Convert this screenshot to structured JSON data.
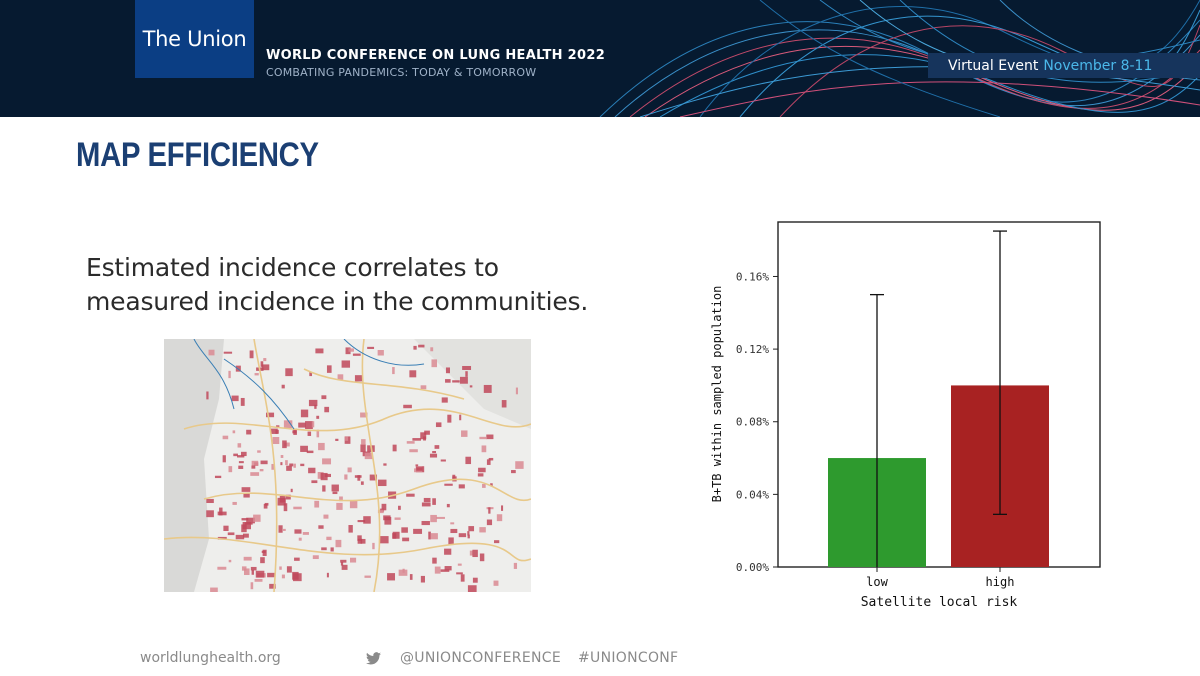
{
  "header": {
    "logo_text": "The Union",
    "conference_title": "WORLD CONFERENCE ON LUNG HEALTH 2022",
    "conference_subtitle": "COMBATING PANDEMICS: TODAY & TOMORROW",
    "event_label": "Virtual Event",
    "event_dates": "November 8-11"
  },
  "slide": {
    "title": "MAP EFFICIENCY",
    "body_line1": "Estimated incidence correlates to",
    "body_line2": "measured incidence in the communities."
  },
  "footer": {
    "website": "worldlunghealth.org",
    "twitter_icon": "twitter-bird-icon",
    "twitter_handle": "@UNIONCONFERENCE",
    "hashtag": "#UNIONCONF"
  },
  "colors": {
    "banner_bg": "#061a30",
    "logo_bg": "#0b3e84",
    "title_blue": "#1b3f73",
    "event_date_blue": "#4bb8ea",
    "bar_low": "#2e9a2e",
    "bar_high": "#a82222"
  },
  "chart_data": {
    "type": "bar",
    "categories": [
      "low",
      "high"
    ],
    "values": [
      0.06,
      0.1
    ],
    "error_bars": [
      [
        0.0,
        0.15
      ],
      [
        0.029,
        0.185
      ]
    ],
    "colors": [
      "#2e9a2e",
      "#a82222"
    ],
    "xlabel": "Satellite local risk",
    "ylabel": "B+TB within sampled population",
    "ylim": [
      0,
      0.19
    ],
    "yticks": [
      0.0,
      0.04,
      0.08,
      0.12,
      0.16
    ],
    "ytick_labels": [
      "0.00%",
      "0.04%",
      "0.08%",
      "0.12%",
      "0.16%"
    ],
    "unit": "%",
    "grid": false
  }
}
